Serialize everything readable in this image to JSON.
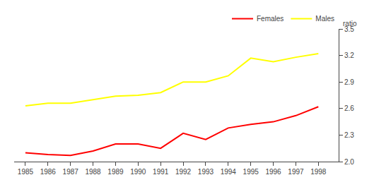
{
  "chart_data": {
    "type": "line",
    "x": [
      1985,
      1986,
      1987,
      1988,
      1989,
      1990,
      1991,
      1992,
      1993,
      1994,
      1995,
      1996,
      1997,
      1998
    ],
    "series": [
      {
        "name": "Females",
        "color": "#ff0000",
        "values": [
          2.1,
          2.08,
          2.07,
          2.12,
          2.2,
          2.2,
          2.15,
          2.32,
          2.25,
          2.38,
          2.42,
          2.45,
          2.52,
          2.62
        ]
      },
      {
        "name": "Males",
        "color": "#ffff00",
        "values": [
          2.63,
          2.66,
          2.66,
          2.7,
          2.74,
          2.75,
          2.78,
          2.9,
          2.9,
          2.97,
          3.17,
          3.13,
          3.18,
          3.22
        ]
      }
    ],
    "xlim": [
      1984.5,
      1998.9
    ],
    "xticks": [
      1985,
      1986,
      1987,
      1988,
      1989,
      1990,
      1991,
      1992,
      1993,
      1994,
      1995,
      1996,
      1997,
      1998
    ],
    "ylim": [
      2.0,
      3.5
    ],
    "yticks": [
      {
        "value": 2.0,
        "label": "2.0"
      },
      2.3,
      2.6,
      2.9,
      3.2,
      3.5
    ],
    "ylabel": "ratio",
    "grid": false,
    "legend": "upper right"
  }
}
